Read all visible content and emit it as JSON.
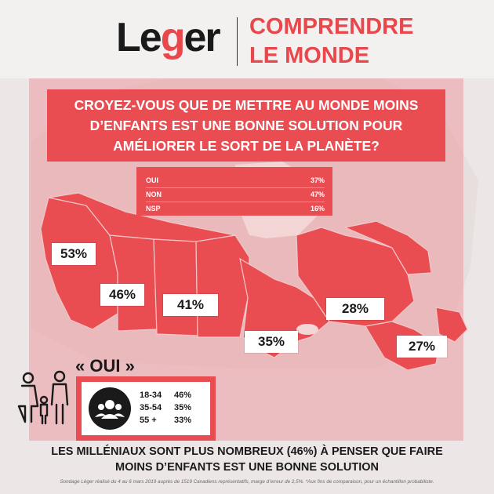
{
  "brand": {
    "logo_parts": [
      "Le",
      "g",
      "er"
    ],
    "tagline_line1": "COMPRENDRE",
    "tagline_line2": "LE MONDE"
  },
  "colors": {
    "accent": "#e94d52",
    "map_fill": "#e94d52",
    "panel": "#f0b0b3",
    "background": "#ece6e6"
  },
  "question": {
    "line1": "CROYEZ-VOUS QUE DE METTRE AU MONDE MOINS",
    "line2": "D’ENFANTS EST UNE BONNE SOLUTION POUR",
    "line3": "AMÉLIORER LE SORT DE LA PLANÈTE?"
  },
  "results": [
    {
      "label": "OUI",
      "value": "37%",
      "value_num": 37
    },
    {
      "label": "NON",
      "value": "47%",
      "value_num": 47
    },
    {
      "label": "NSP",
      "value": "16%",
      "value_num": 16
    }
  ],
  "regions": [
    {
      "value": "53%"
    },
    {
      "value": "46%"
    },
    {
      "value": "41%"
    },
    {
      "value": "35%"
    },
    {
      "value": "28%"
    },
    {
      "value": "27%"
    }
  ],
  "oui_title": "« OUI »",
  "age_groups": [
    {
      "range": "18-34",
      "value": "46%"
    },
    {
      "range": "35-54",
      "value": "35%"
    },
    {
      "range": "55 +",
      "value": "33%"
    }
  ],
  "icons": {
    "family": "family-icon",
    "group": "group-icon"
  },
  "conclusion": {
    "line1": "LES MILLÉNIAUX SONT PLUS NOMBREUX (46%) À PENSER QUE FAIRE",
    "line2": "MOINS D’ENFANTS EST UNE BONNE SOLUTION"
  },
  "footnote": "Sondage Léger réalisé du 4 au 6 mars 2019 auprès de 1519 Canadiens représentatifs, marge d’erreur de 2,5%. *Aux fins de comparaison, pour un échantillon probabiliste."
}
